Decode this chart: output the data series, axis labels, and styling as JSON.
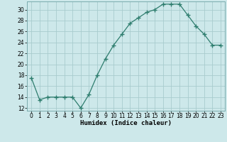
{
  "x": [
    0,
    1,
    2,
    3,
    4,
    5,
    6,
    7,
    8,
    9,
    10,
    11,
    12,
    13,
    14,
    15,
    16,
    17,
    18,
    19,
    20,
    21,
    22,
    23
  ],
  "y": [
    17.5,
    13.5,
    14.0,
    14.0,
    14.0,
    14.0,
    12.0,
    14.5,
    18.0,
    21.0,
    23.5,
    25.5,
    27.5,
    28.5,
    29.5,
    30.0,
    31.0,
    31.0,
    31.0,
    29.0,
    27.0,
    25.5,
    23.5,
    23.5
  ],
  "line_color": "#2e7d6e",
  "marker": "+",
  "marker_size": 4,
  "bg_color": "#cde8ea",
  "grid_color": "#a8ccce",
  "xlabel": "Humidex (Indice chaleur)",
  "ylabel": "",
  "xlim": [
    -0.5,
    23.5
  ],
  "ylim": [
    11.5,
    31.5
  ],
  "yticks": [
    12,
    14,
    16,
    18,
    20,
    22,
    24,
    26,
    28,
    30
  ],
  "xtick_labels": [
    "0",
    "1",
    "2",
    "3",
    "4",
    "5",
    "6",
    "7",
    "8",
    "9",
    "10",
    "11",
    "12",
    "13",
    "14",
    "15",
    "16",
    "17",
    "18",
    "19",
    "20",
    "21",
    "22",
    "23"
  ],
  "label_fontsize": 6.5,
  "tick_fontsize": 5.5
}
